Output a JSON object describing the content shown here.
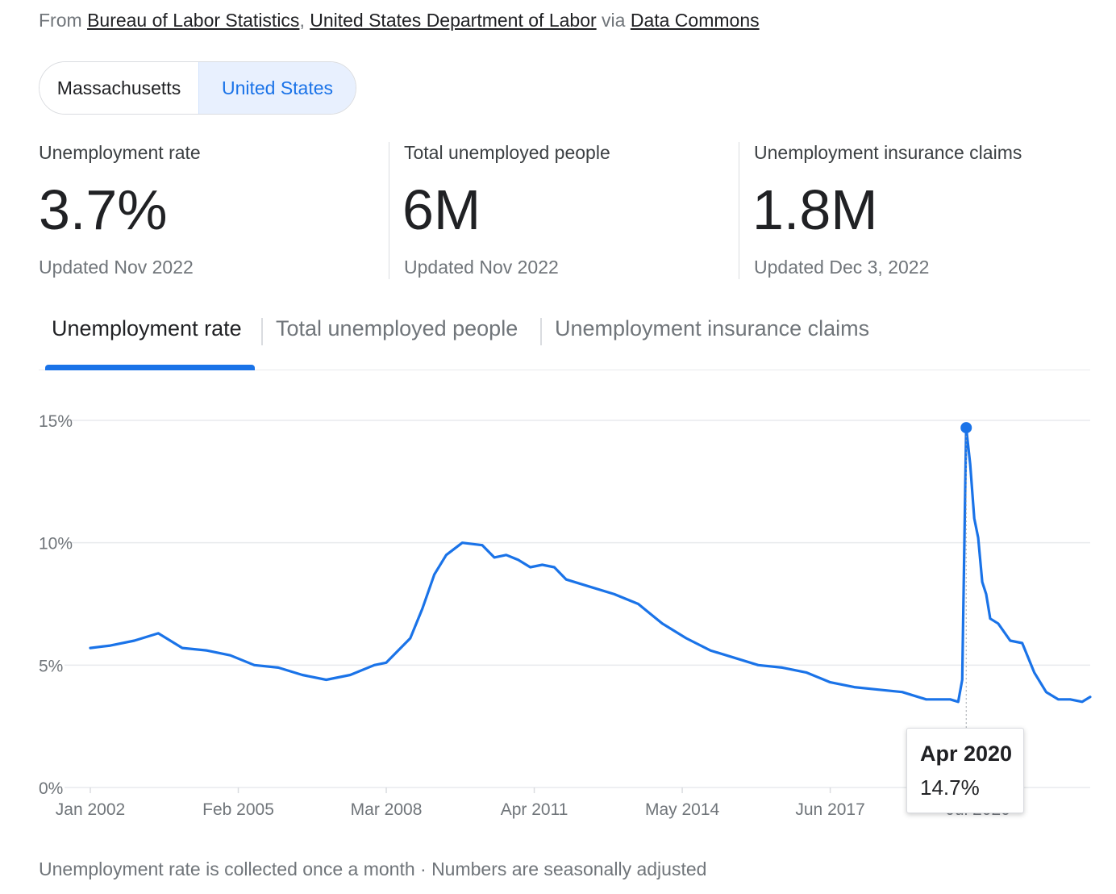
{
  "source": {
    "prefix": "From",
    "links": [
      "Bureau of Labor Statistics",
      "United States Department of Labor"
    ],
    "via": "via",
    "via_link": "Data Commons"
  },
  "region_toggle": {
    "options": [
      "Massachusetts",
      "United States"
    ],
    "selected": "United States"
  },
  "stats": [
    {
      "label": "Unemployment rate",
      "value": "3.7%",
      "updated": "Updated Nov 2022"
    },
    {
      "label": "Total unemployed people",
      "value": "6M",
      "updated": "Updated Nov 2022"
    },
    {
      "label": "Unemployment insurance claims",
      "value": "1.8M",
      "updated": "Updated Dec 3, 2022"
    }
  ],
  "tabs": [
    "Unemployment rate",
    "Total unemployed people",
    "Unemployment insurance claims"
  ],
  "active_tab": "Unemployment rate",
  "tooltip": {
    "date": "Apr 2020",
    "value": "14.7%"
  },
  "footnote": "Unemployment rate is collected once a month · Numbers are seasonally adjusted",
  "colors": {
    "accent": "#1a73e8",
    "line": "#1a73e8",
    "grid": "#e8eaed",
    "text_secondary": "#70757a"
  },
  "chart_data": {
    "type": "line",
    "series": [
      {
        "name": "",
        "color": "#1a73e8"
      }
    ],
    "ylim": [
      0,
      15
    ],
    "y_ticks": [
      0,
      5,
      10,
      15
    ],
    "y_tick_labels": [
      "0%",
      "5%",
      "10%",
      "15%"
    ],
    "x_tick_labels": [
      "Jan 2002",
      "Feb 2005",
      "Mar 2008",
      "Apr 2011",
      "May 2014",
      "Jun 2017",
      "Jul 2020"
    ],
    "x_ticks": [
      "2002-01",
      "2005-02",
      "2008-03",
      "2011-04",
      "2014-05",
      "2017-06",
      "2020-07"
    ],
    "x_range": [
      "2002-01",
      "2022-11"
    ],
    "grid": true,
    "highlight": {
      "x": "2020-04",
      "y": 14.7
    },
    "points": [
      [
        "2002-01",
        5.7
      ],
      [
        "2002-06",
        5.8
      ],
      [
        "2002-12",
        6.0
      ],
      [
        "2003-06",
        6.3
      ],
      [
        "2003-12",
        5.7
      ],
      [
        "2004-06",
        5.6
      ],
      [
        "2004-12",
        5.4
      ],
      [
        "2005-06",
        5.0
      ],
      [
        "2005-12",
        4.9
      ],
      [
        "2006-06",
        4.6
      ],
      [
        "2006-12",
        4.4
      ],
      [
        "2007-06",
        4.6
      ],
      [
        "2007-12",
        5.0
      ],
      [
        "2008-03",
        5.1
      ],
      [
        "2008-06",
        5.6
      ],
      [
        "2008-09",
        6.1
      ],
      [
        "2008-12",
        7.3
      ],
      [
        "2009-03",
        8.7
      ],
      [
        "2009-06",
        9.5
      ],
      [
        "2009-10",
        10.0
      ],
      [
        "2010-03",
        9.9
      ],
      [
        "2010-06",
        9.4
      ],
      [
        "2010-09",
        9.5
      ],
      [
        "2010-12",
        9.3
      ],
      [
        "2011-03",
        9.0
      ],
      [
        "2011-06",
        9.1
      ],
      [
        "2011-09",
        9.0
      ],
      [
        "2011-12",
        8.5
      ],
      [
        "2012-06",
        8.2
      ],
      [
        "2012-12",
        7.9
      ],
      [
        "2013-06",
        7.5
      ],
      [
        "2013-12",
        6.7
      ],
      [
        "2014-06",
        6.1
      ],
      [
        "2014-12",
        5.6
      ],
      [
        "2015-06",
        5.3
      ],
      [
        "2015-12",
        5.0
      ],
      [
        "2016-06",
        4.9
      ],
      [
        "2016-12",
        4.7
      ],
      [
        "2017-06",
        4.3
      ],
      [
        "2017-12",
        4.1
      ],
      [
        "2018-06",
        4.0
      ],
      [
        "2018-12",
        3.9
      ],
      [
        "2019-06",
        3.6
      ],
      [
        "2019-12",
        3.6
      ],
      [
        "2020-02",
        3.5
      ],
      [
        "2020-03",
        4.4
      ],
      [
        "2020-04",
        14.7
      ],
      [
        "2020-05",
        13.2
      ],
      [
        "2020-06",
        11.0
      ],
      [
        "2020-07",
        10.2
      ],
      [
        "2020-08",
        8.4
      ],
      [
        "2020-09",
        7.9
      ],
      [
        "2020-10",
        6.9
      ],
      [
        "2020-12",
        6.7
      ],
      [
        "2021-03",
        6.0
      ],
      [
        "2021-06",
        5.9
      ],
      [
        "2021-09",
        4.7
      ],
      [
        "2021-12",
        3.9
      ],
      [
        "2022-03",
        3.6
      ],
      [
        "2022-06",
        3.6
      ],
      [
        "2022-09",
        3.5
      ],
      [
        "2022-11",
        3.7
      ]
    ]
  }
}
